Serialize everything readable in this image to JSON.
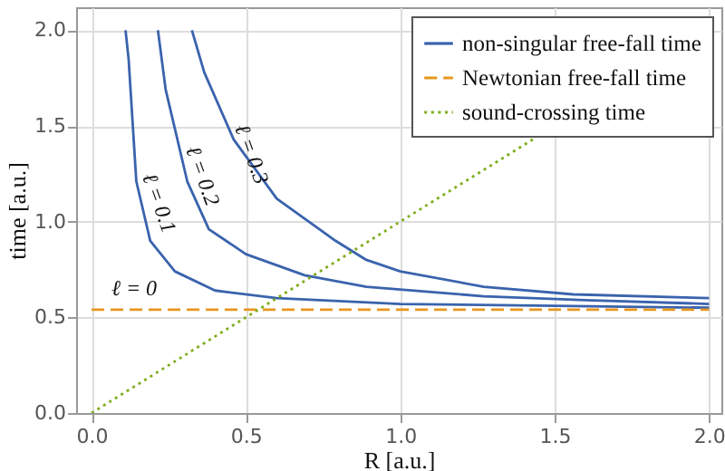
{
  "chart_data": {
    "type": "line",
    "xlabel": "R [a.u.]",
    "ylabel": "time [a.u.]",
    "xlim": [
      -0.05,
      2.04
    ],
    "xticks": [
      {
        "value": 0,
        "label": "0.0"
      },
      0.5,
      {
        "value": 1,
        "label": "1.0"
      },
      1.5,
      {
        "value": 2,
        "label": "2.0"
      }
    ],
    "ylim": [
      0,
      2.12
    ],
    "yticks": [
      {
        "value": 0,
        "label": "0.0"
      },
      0.5,
      {
        "value": 1,
        "label": "1.0"
      },
      1.5,
      {
        "value": 2,
        "label": "2.0"
      }
    ],
    "grid": true,
    "legend": "top right",
    "series": [
      {
        "name": "non-singular free-fall time",
        "color": "#3a63ad",
        "line_style": "solid",
        "x": [
          0.11,
          0.12,
          0.145,
          0.19,
          0.27,
          0.4,
          0.6,
          1.0,
          1.5,
          2.0
        ],
        "values": [
          2.0,
          1.85,
          1.21,
          0.9,
          0.74,
          0.64,
          0.6,
          0.57,
          0.56,
          0.55
        ]
      },
      {
        "color": "#3a63ad",
        "line_style": "solid",
        "x": [
          0.215,
          0.24,
          0.31,
          0.38,
          0.5,
          0.69,
          0.89,
          1.27,
          1.6,
          2.0
        ],
        "values": [
          2.0,
          1.69,
          1.21,
          0.96,
          0.83,
          0.72,
          0.66,
          0.61,
          0.59,
          0.57
        ]
      },
      {
        "color": "#3a63ad",
        "line_style": "solid",
        "x": [
          0.325,
          0.365,
          0.46,
          0.6,
          0.79,
          0.89,
          1.0,
          1.27,
          1.56,
          2.0
        ],
        "values": [
          2.0,
          1.78,
          1.43,
          1.12,
          0.9,
          0.8,
          0.74,
          0.66,
          0.62,
          0.6
        ]
      },
      {
        "name": "Newtonian free-fall time",
        "color": "#e8961e",
        "line_style": "dashed",
        "x": [
          0,
          2.0
        ],
        "values": [
          0.54,
          0.54
        ]
      },
      {
        "name": "sound-crossing time",
        "color": "#7fad1c",
        "line_style": "dotted",
        "x": [
          0,
          1.44
        ],
        "values": [
          0,
          1.44
        ]
      }
    ],
    "annotations": [
      "ℓ = 0",
      "ℓ = 0.1",
      "ℓ = 0.2",
      "ℓ = 0.3"
    ]
  }
}
